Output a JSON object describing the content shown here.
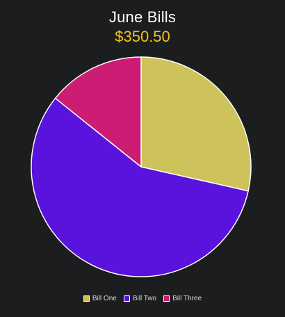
{
  "chart_data": {
    "type": "pie",
    "title": "June Bills",
    "subtitle": "$350.50",
    "subtitle_color": "#f0c419",
    "categories": [
      "Bill One",
      "Bill Two",
      "Bill Three"
    ],
    "values": [
      100.0,
      200.5,
      50.0
    ],
    "colors": [
      "#cdc35a",
      "#5a12dd",
      "#cd1c73"
    ],
    "slice_border_color": "#ffffff",
    "legend_position": "bottom"
  }
}
